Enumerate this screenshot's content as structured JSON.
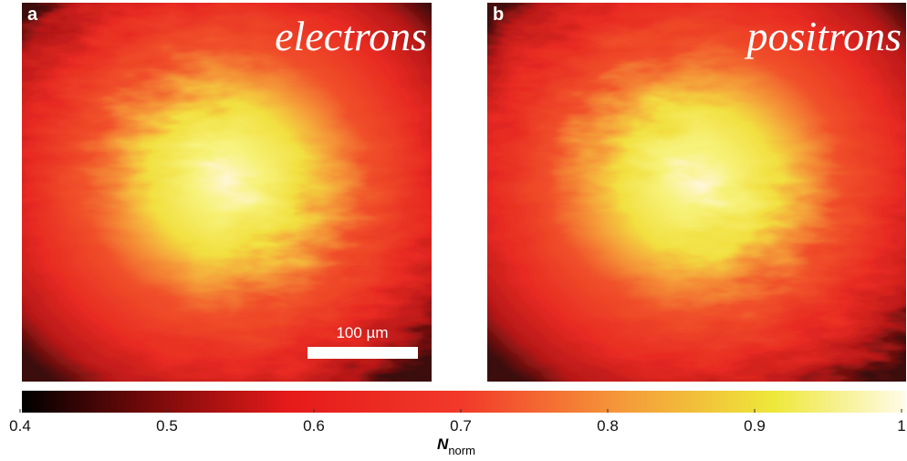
{
  "panels": [
    {
      "label": "a",
      "title": "electrons"
    },
    {
      "label": "b",
      "title": "positrons"
    }
  ],
  "scale_bar": "100 µm",
  "colorbar": {
    "label": "N",
    "label_subscript": "norm",
    "lim": [
      0.4,
      1
    ],
    "ticks": [
      0.4,
      0.5,
      0.6,
      0.7,
      0.8,
      0.9,
      1
    ]
  }
}
